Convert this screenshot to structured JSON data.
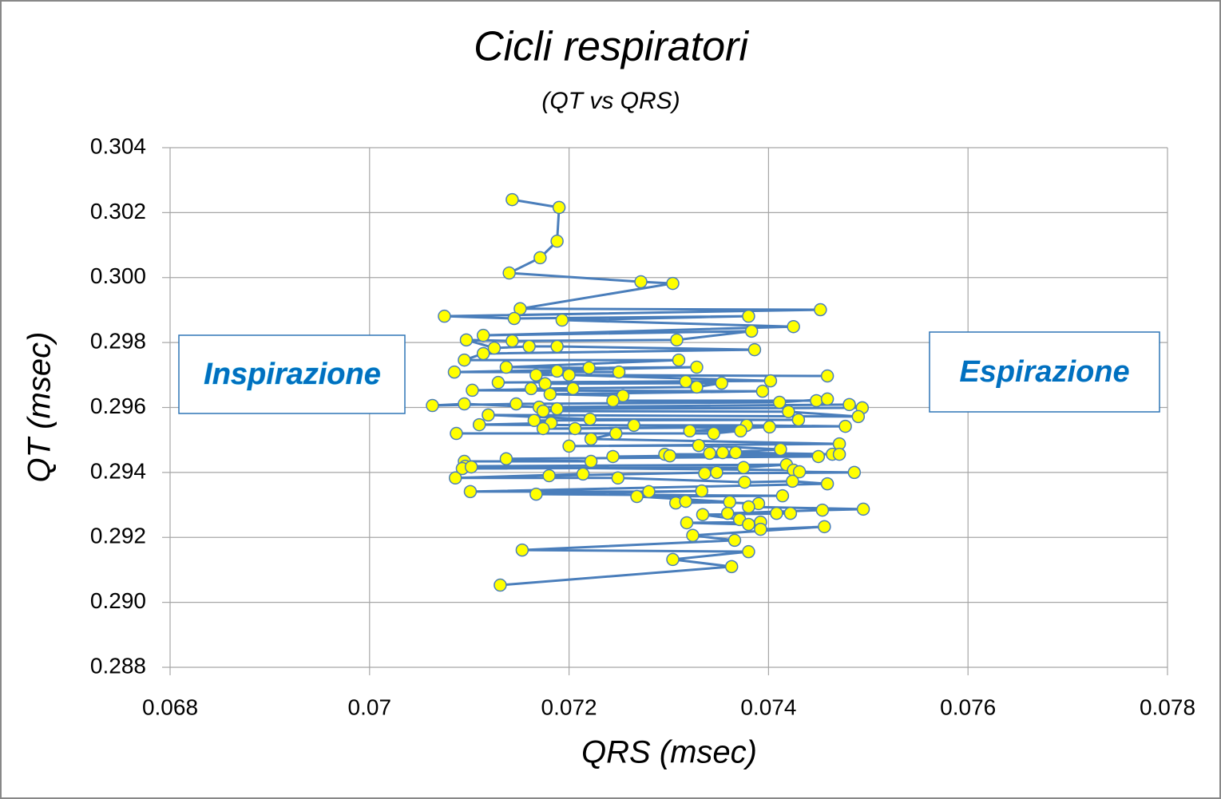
{
  "chart_data": {
    "type": "scatter",
    "title": "Cicli respiratori",
    "subtitle": "(QT vs QRS)",
    "x_label": "QRS (msec)",
    "y_label": "QT (msec)",
    "annotations": [
      "Inspirazione",
      "Espirazione"
    ],
    "line_color": "#4a7ebb",
    "marker_color": "#ffff00",
    "marker_edge": "#4a7ebb",
    "grid": true,
    "xlim": [
      0.068,
      0.078
    ],
    "xticks": [
      0.068,
      0.07,
      0.072,
      0.074,
      0.076,
      0.078
    ],
    "ylim": [
      0.288,
      0.304
    ],
    "yticks": [
      {
        "value": 0.288,
        "label": "0.288"
      },
      {
        "value": 0.29,
        "label": "0.290"
      },
      0.292,
      0.294,
      0.296,
      0.298,
      {
        "value": 0.3,
        "label": "0.300"
      },
      0.302,
      0.304
    ],
    "x": [
      0.07143,
      0.0719,
      0.07188,
      0.07171,
      0.0714,
      0.07272,
      0.07304,
      0.07151,
      0.07452,
      0.07075,
      0.07145,
      0.0738,
      0.07193,
      0.07425,
      0.07114,
      0.07383,
      0.07308,
      0.07143,
      0.07097,
      0.07125,
      0.0716,
      0.07188,
      0.07386,
      0.07114,
      0.07095,
      0.0731,
      0.07137,
      0.0722,
      0.07328,
      0.07085,
      0.0725,
      0.07188,
      0.07167,
      0.07459,
      0.072,
      0.07402,
      0.07129,
      0.07317,
      0.07176,
      0.07353,
      0.07328,
      0.07162,
      0.07204,
      0.07103,
      0.07394,
      0.07181,
      0.07254,
      0.07244,
      0.07448,
      0.07459,
      0.07411,
      0.07147,
      0.07063,
      0.07095,
      0.0717,
      0.07481,
      0.07494,
      0.07188,
      0.07174,
      0.0742,
      0.0749,
      0.07119,
      0.07221,
      0.0743,
      0.07165,
      0.07182,
      0.0711,
      0.07265,
      0.07378,
      0.07477,
      0.07174,
      0.07206,
      0.07401,
      0.07321,
      0.07372,
      0.07345,
      0.07087,
      0.07247,
      0.07222,
      0.07471,
      0.072,
      0.0733,
      0.07412,
      0.07341,
      0.07354,
      0.07367,
      0.07464,
      0.07471,
      0.07296,
      0.07301,
      0.07244,
      0.0745,
      0.07137,
      0.07222,
      0.07095,
      0.07096,
      0.07418,
      0.07375,
      0.07093,
      0.07102,
      0.07425,
      0.07431,
      0.07486,
      0.07336,
      0.07348,
      0.0718,
      0.07214,
      0.07086,
      0.07249,
      0.07376,
      0.07424,
      0.07459,
      0.07101,
      0.0728,
      0.07333,
      0.07167,
      0.07414,
      0.07268,
      0.07361,
      0.07307,
      0.07317,
      0.0739,
      0.0738,
      0.07495,
      0.07454,
      0.07359,
      0.07408,
      0.07422,
      0.07334,
      0.07371,
      0.07392,
      0.07318,
      0.0738,
      0.07392,
      0.07456,
      0.07324,
      0.07366,
      0.07153,
      0.0738,
      0.07304,
      0.07363,
      0.07131
    ],
    "y": [
      0.3024,
      0.30216,
      0.30112,
      0.30061,
      0.30014,
      0.29987,
      0.29982,
      0.29904,
      0.29901,
      0.29881,
      0.29874,
      0.29881,
      0.29869,
      0.29849,
      0.29822,
      0.29835,
      0.29808,
      0.29805,
      0.29808,
      0.29783,
      0.29788,
      0.29788,
      0.29778,
      0.29766,
      0.29746,
      0.29746,
      0.29724,
      0.29722,
      0.29724,
      0.29709,
      0.29709,
      0.29712,
      0.297,
      0.29697,
      0.297,
      0.29682,
      0.29677,
      0.2968,
      0.29673,
      0.29675,
      0.29663,
      0.29658,
      0.29658,
      0.29653,
      0.2965,
      0.29641,
      0.29636,
      0.29621,
      0.29621,
      0.29626,
      0.29616,
      0.29611,
      0.29606,
      0.29611,
      0.29601,
      0.29609,
      0.29599,
      0.29596,
      0.29589,
      0.29587,
      0.29572,
      0.29577,
      0.29564,
      0.29562,
      0.2956,
      0.29552,
      0.29547,
      0.29545,
      0.29545,
      0.29542,
      0.29535,
      0.29535,
      0.2954,
      0.29528,
      0.29528,
      0.2952,
      0.2952,
      0.2952,
      0.29503,
      0.29488,
      0.29481,
      0.29483,
      0.29471,
      0.29459,
      0.29461,
      0.29461,
      0.29456,
      0.29456,
      0.29456,
      0.29451,
      0.29449,
      0.29449,
      0.29442,
      0.29434,
      0.29434,
      0.29419,
      0.29424,
      0.29415,
      0.29412,
      0.29417,
      0.29407,
      0.29402,
      0.294,
      0.29397,
      0.294,
      0.2939,
      0.29395,
      0.29383,
      0.29383,
      0.2937,
      0.29373,
      0.29365,
      0.29341,
      0.29341,
      0.29343,
      0.29333,
      0.29328,
      0.29326,
      0.29309,
      0.29306,
      0.29311,
      0.29304,
      0.29294,
      0.29287,
      0.29284,
      0.29274,
      0.29274,
      0.29274,
      0.2927,
      0.29255,
      0.29247,
      0.29245,
      0.2924,
      0.29225,
      0.29233,
      0.29206,
      0.29191,
      0.29161,
      0.29156,
      0.29132,
      0.2911,
      0.29053
    ]
  }
}
